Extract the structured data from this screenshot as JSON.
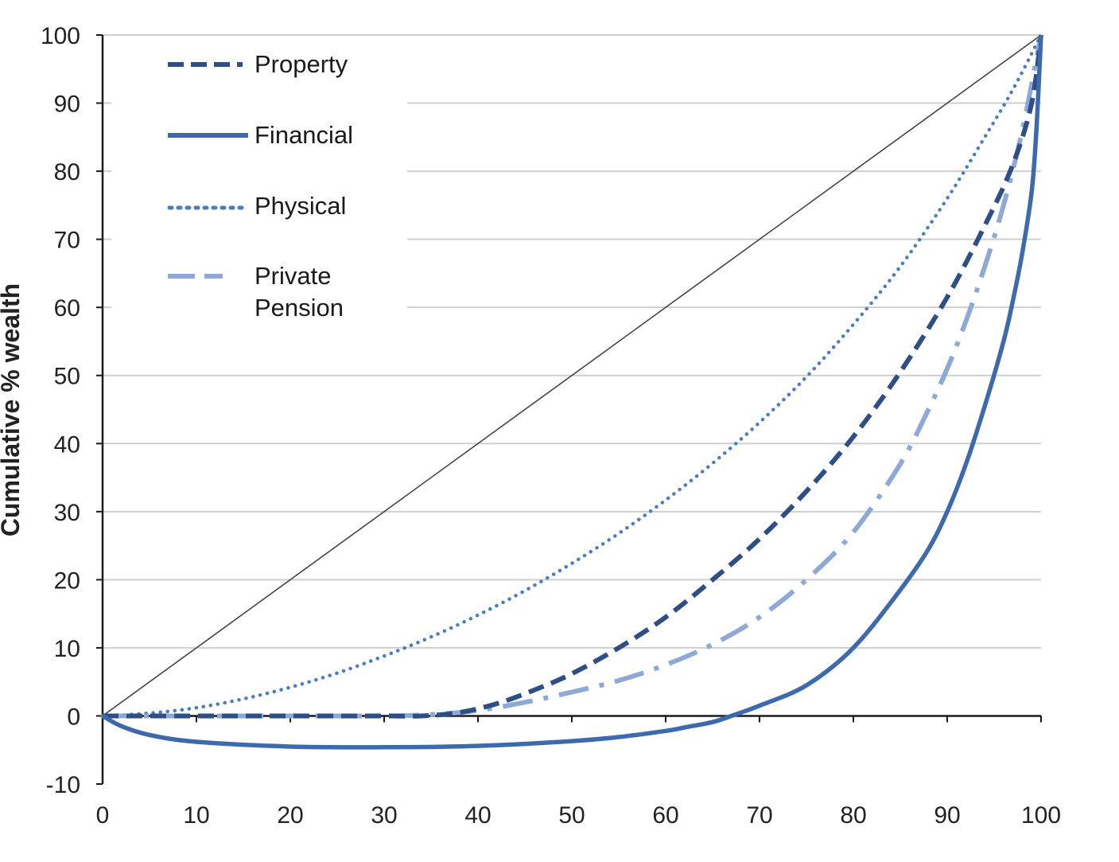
{
  "chart_data": {
    "type": "line",
    "title": "",
    "xlabel": "",
    "ylabel": "Cumulative % wealth",
    "xlim": [
      0,
      100
    ],
    "ylim": [
      -10,
      100
    ],
    "x_ticks": [
      0,
      10,
      20,
      30,
      40,
      50,
      60,
      70,
      80,
      90,
      100
    ],
    "y_ticks": [
      -10,
      0,
      10,
      20,
      30,
      40,
      50,
      60,
      70,
      80,
      90,
      100
    ],
    "grid": "horizontal",
    "legend_position": "top-left",
    "equality_line": {
      "x": [
        0,
        100
      ],
      "y": [
        0,
        100
      ]
    },
    "series": [
      {
        "name": "Property",
        "style": "dashed",
        "color": "#2e4f86",
        "x": [
          0,
          10,
          20,
          30,
          34,
          38,
          42,
          46,
          50,
          55,
          60,
          65,
          70,
          75,
          80,
          85,
          90,
          94,
          97,
          99,
          100
        ],
        "y": [
          0,
          0,
          0,
          0,
          0,
          0.5,
          1.8,
          3.8,
          6.2,
          10,
          14.5,
          20,
          26,
          33,
          41,
          50.5,
          61.5,
          72,
          81,
          90,
          100
        ]
      },
      {
        "name": "Financial",
        "style": "solid",
        "color": "#3d6aad",
        "x": [
          0,
          2,
          5,
          10,
          20,
          30,
          40,
          50,
          55,
          60,
          62,
          65,
          67,
          70,
          75,
          80,
          85,
          88,
          90,
          92,
          94,
          96,
          97,
          98,
          99,
          99.5,
          100
        ],
        "y": [
          0,
          -1.5,
          -2.8,
          -3.8,
          -4.5,
          -4.6,
          -4.4,
          -3.7,
          -3.1,
          -2.2,
          -1.7,
          -0.9,
          0,
          1.5,
          4.5,
          10,
          18.5,
          24.5,
          30,
          37,
          45.5,
          55,
          61,
          68,
          77,
          86,
          100
        ]
      },
      {
        "name": "Physical",
        "style": "dotted",
        "color": "#4a7cc2",
        "x": [
          0,
          5,
          10,
          15,
          20,
          25,
          30,
          35,
          40,
          45,
          50,
          55,
          60,
          65,
          70,
          75,
          80,
          85,
          90,
          94,
          97,
          100
        ],
        "y": [
          0,
          0.4,
          1.2,
          2.5,
          4.2,
          6.3,
          8.8,
          11.6,
          14.8,
          18.4,
          22.4,
          26.8,
          31.7,
          37.1,
          43.1,
          49.8,
          57.5,
          66,
          76,
          85,
          92,
          100
        ]
      },
      {
        "name": "Private Pension",
        "style": "long-dash",
        "color": "#8fa9d6",
        "x": [
          0,
          10,
          20,
          30,
          35,
          40,
          45,
          50,
          55,
          60,
          65,
          70,
          75,
          80,
          85,
          88,
          90,
          92,
          94,
          96,
          98,
          100
        ],
        "y": [
          0,
          0,
          0,
          0,
          0.2,
          0.8,
          2.0,
          3.5,
          5.2,
          7.5,
          10.5,
          14.5,
          20,
          27,
          37,
          45,
          51,
          58,
          66,
          75,
          86,
          100
        ]
      }
    ],
    "legend": {
      "property": "Property",
      "financial": "Financial",
      "physical": "Physical",
      "pension_line1": "Private",
      "pension_line2": "Pension"
    }
  }
}
